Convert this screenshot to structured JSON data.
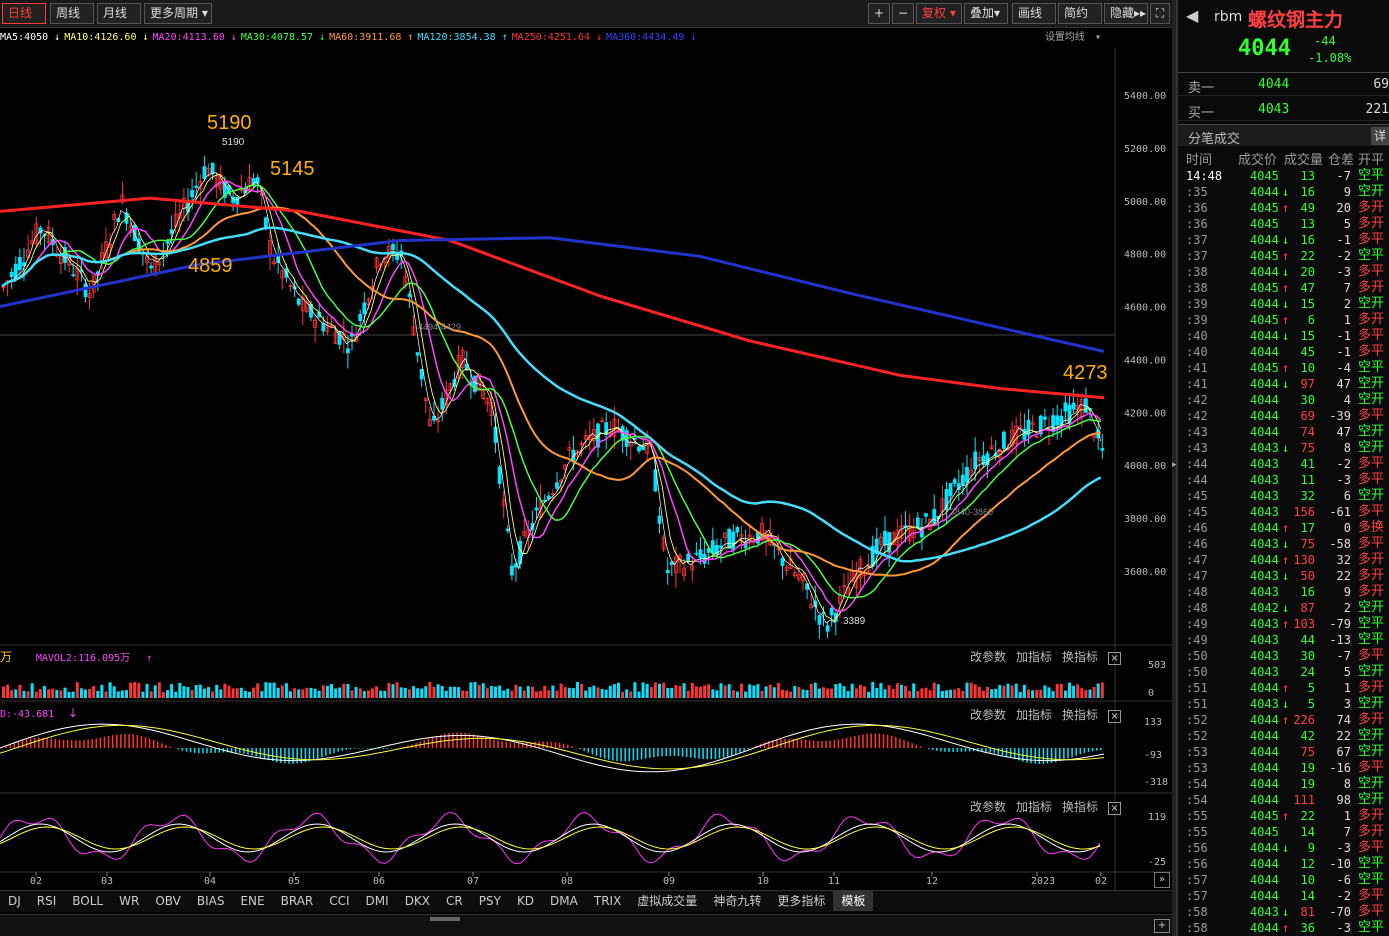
{
  "toolbar": {
    "period_tabs": [
      "日线",
      "周线",
      "月线",
      "更多周期"
    ],
    "right_buttons": [
      "+",
      "−",
      "复权",
      "叠加",
      "画线",
      "简约",
      "隐藏"
    ]
  },
  "ma_legend": [
    {
      "label": "MA5:4050",
      "color": "#ffffff",
      "arrow": "↓"
    },
    {
      "label": "MA10:4126.60",
      "color": "#ffff66",
      "arrow": "↓"
    },
    {
      "label": "MA20:4113.60",
      "color": "#ff44ff",
      "arrow": "↓"
    },
    {
      "label": "MA30:4078.57",
      "color": "#44ff44",
      "arrow": "↓"
    },
    {
      "label": "MA60:3911.68",
      "color": "#ff9933",
      "arrow": "↑"
    },
    {
      "label": "MA120:3854.38",
      "color": "#44ddff",
      "arrow": "↑"
    },
    {
      "label": "MA250:4251.64",
      "color": "#ff3333",
      "arrow": "↓"
    },
    {
      "label": "MA360:4434.49",
      "color": "#3344ff",
      "arrow": "↓"
    }
  ],
  "set_ma_label": "设置均线",
  "price_axis": [
    "5400.00",
    "5200.00",
    "5000.00",
    "4800.00",
    "4600.00",
    "4400.00",
    "4200.00",
    "4000.00",
    "3800.00",
    "3600.00"
  ],
  "annotations": {
    "high1": "5190",
    "high1_small": "5190",
    "high2": "5145",
    "low_mid": "4859",
    "right_high": "4273",
    "low": "3389",
    "hline_label": "4494-4429",
    "hline_label2": "3840-3860"
  },
  "volume_panel": {
    "label": "MAVOL2:116.095万",
    "prefix": "万",
    "axis": [
      "503",
      "0"
    ]
  },
  "macd_panel": {
    "label": "D:-43.681",
    "axis": [
      "133",
      "-93",
      "-318"
    ]
  },
  "kdj_panel": {
    "axis": [
      "119",
      "-25"
    ]
  },
  "panel_tools": [
    "改参数",
    "加指标",
    "换指标"
  ],
  "x_months": [
    "02",
    "03",
    "04",
    "05",
    "06",
    "07",
    "08",
    "09",
    "10",
    "11",
    "12",
    "2023",
    "02"
  ],
  "indicator_tabs": [
    "DJ",
    "RSI",
    "BOLL",
    "WR",
    "OBV",
    "BIAS",
    "ENE",
    "BRAR",
    "CCI",
    "DMI",
    "DKX",
    "CR",
    "PSY",
    "KD",
    "DMA",
    "TRIX",
    "虚拟成交量",
    "神奇九转",
    "更多指标",
    "模板"
  ],
  "side": {
    "symbol_code": "rbm",
    "symbol_name": "螺纹钢主力",
    "price": "4044",
    "change": "-44",
    "change_pct": "-1.08%",
    "ask_label": "卖一",
    "ask_price": "4044",
    "ask_vol": "69",
    "bid_label": "买一",
    "bid_price": "4043",
    "bid_vol": "221",
    "ticks_title": "分笔成交",
    "detail_btn": "详",
    "cols": [
      "时间",
      "成交价",
      "成交量",
      "仓差",
      "开平"
    ],
    "ticks": [
      [
        "14:48",
        "4045",
        "",
        "13",
        "-7",
        "空平"
      ],
      [
        ":35",
        "4044",
        "↓",
        "16",
        "9",
        "空开"
      ],
      [
        ":36",
        "4045",
        "↑",
        "49",
        "20",
        "多开"
      ],
      [
        ":36",
        "4045",
        "",
        "13",
        "5",
        "多开"
      ],
      [
        ":37",
        "4044",
        "↓",
        "16",
        "-1",
        "多平"
      ],
      [
        ":37",
        "4045",
        "↑",
        "22",
        "-2",
        "空平"
      ],
      [
        ":38",
        "4044",
        "↓",
        "20",
        "-3",
        "多平"
      ],
      [
        ":38",
        "4045",
        "↑",
        "47",
        "7",
        "多开"
      ],
      [
        ":39",
        "4044",
        "↓",
        "15",
        "2",
        "空开"
      ],
      [
        ":39",
        "4045",
        "↑",
        "6",
        "1",
        "多开"
      ],
      [
        ":40",
        "4044",
        "↓",
        "15",
        "-1",
        "多平"
      ],
      [
        ":40",
        "4044",
        "",
        "45",
        "-1",
        "多平"
      ],
      [
        ":41",
        "4045",
        "↑",
        "10",
        "-4",
        "空平"
      ],
      [
        ":41",
        "4044",
        "↓",
        "97",
        "47",
        "空开"
      ],
      [
        ":42",
        "4044",
        "",
        "30",
        "4",
        "空开"
      ],
      [
        ":42",
        "4044",
        "",
        "69",
        "-39",
        "多平"
      ],
      [
        ":43",
        "4044",
        "",
        "74",
        "47",
        "空开"
      ],
      [
        ":43",
        "4043",
        "↓",
        "75",
        "8",
        "空开"
      ],
      [
        ":44",
        "4043",
        "",
        "41",
        "-2",
        "多平"
      ],
      [
        ":44",
        "4043",
        "",
        "11",
        "-3",
        "多平"
      ],
      [
        ":45",
        "4043",
        "",
        "32",
        "6",
        "空开"
      ],
      [
        ":45",
        "4043",
        "",
        "156",
        "-61",
        "多平"
      ],
      [
        ":46",
        "4044",
        "↑",
        "17",
        "0",
        "多换"
      ],
      [
        ":46",
        "4043",
        "↓",
        "75",
        "-58",
        "多平"
      ],
      [
        ":47",
        "4044",
        "↑",
        "130",
        "32",
        "多开"
      ],
      [
        ":47",
        "4043",
        "↓",
        "50",
        "22",
        "多开"
      ],
      [
        ":48",
        "4043",
        "",
        "16",
        "9",
        "多开"
      ],
      [
        ":48",
        "4042",
        "↓",
        "87",
        "2",
        "空开"
      ],
      [
        ":49",
        "4043",
        "↑",
        "103",
        "-79",
        "空平"
      ],
      [
        ":49",
        "4043",
        "",
        "44",
        "-13",
        "空平"
      ],
      [
        ":50",
        "4043",
        "",
        "30",
        "-7",
        "多平"
      ],
      [
        ":50",
        "4043",
        "",
        "24",
        "5",
        "空开"
      ],
      [
        ":51",
        "4044",
        "↑",
        "5",
        "1",
        "多开"
      ],
      [
        ":51",
        "4043",
        "↓",
        "5",
        "3",
        "空开"
      ],
      [
        ":52",
        "4044",
        "↑",
        "226",
        "74",
        "多开"
      ],
      [
        ":52",
        "4044",
        "",
        "42",
        "22",
        "空开"
      ],
      [
        ":53",
        "4044",
        "",
        "75",
        "67",
        "空开"
      ],
      [
        ":53",
        "4044",
        "",
        "19",
        "-16",
        "多平"
      ],
      [
        ":54",
        "4044",
        "",
        "19",
        "8",
        "空开"
      ],
      [
        ":54",
        "4044",
        "",
        "111",
        "98",
        "空开"
      ],
      [
        ":55",
        "4045",
        "↑",
        "22",
        "1",
        "多开"
      ],
      [
        ":55",
        "4045",
        "",
        "14",
        "7",
        "多开"
      ],
      [
        ":56",
        "4044",
        "↓",
        "9",
        "-3",
        "多平"
      ],
      [
        ":56",
        "4044",
        "",
        "12",
        "-10",
        "空平"
      ],
      [
        ":57",
        "4044",
        "",
        "10",
        "-6",
        "空平"
      ],
      [
        ":57",
        "4044",
        "",
        "14",
        "-2",
        "多平"
      ],
      [
        ":58",
        "4043",
        "↓",
        "81",
        "-70",
        "多平"
      ],
      [
        ":58",
        "4044",
        "↑",
        "36",
        "-3",
        "空平"
      ]
    ]
  },
  "colors": {
    "up": "#ff3333",
    "down": "#00e5ff",
    "accent_gold": "#ffb000",
    "green": "#33ff33"
  }
}
